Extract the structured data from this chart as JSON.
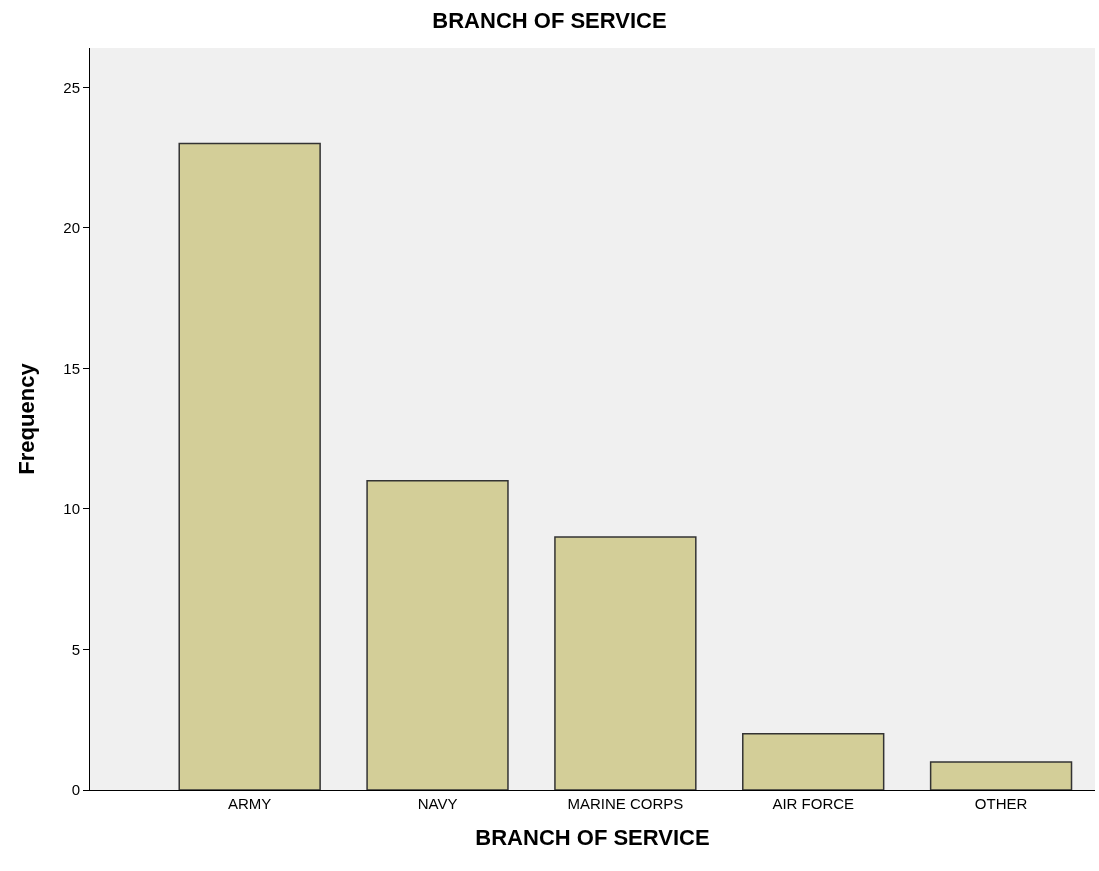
{
  "chart_data": {
    "type": "bar",
    "title": "BRANCH OF SERVICE",
    "xlabel": "BRANCH OF SERVICE",
    "ylabel": "Frequency",
    "categories": [
      "ARMY",
      "NAVY",
      "MARINE CORPS",
      "AIR FORCE",
      "OTHER"
    ],
    "values": [
      23,
      11,
      9,
      2,
      1
    ],
    "color": "#d3ce98",
    "ylim": [
      0,
      26.4
    ],
    "yticks": [
      0,
      5,
      10,
      15,
      20,
      25
    ],
    "grid": false
  }
}
